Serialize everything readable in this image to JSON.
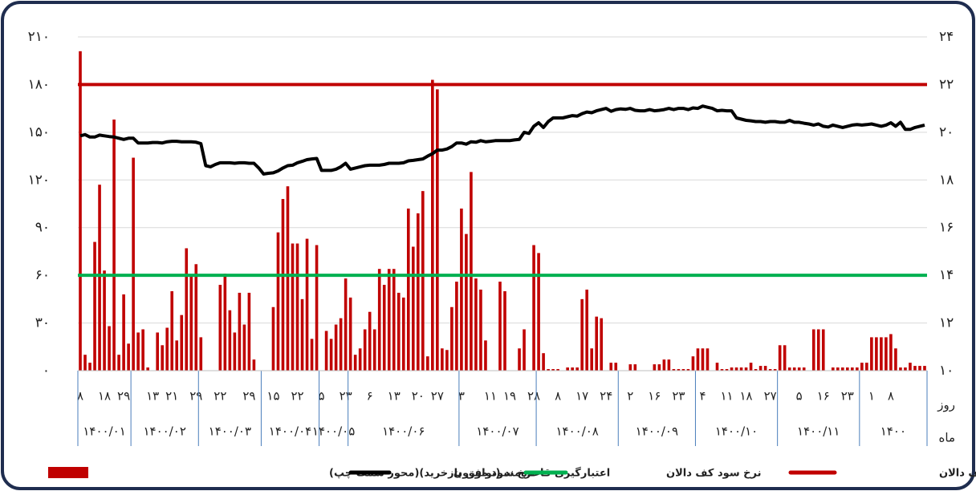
{
  "chart_data": {
    "type": "bar",
    "ylim": [
      0,
      210
    ],
    "yticks": [
      {
        "value": 0,
        "label": "۰"
      },
      {
        "value": 30,
        "label": "۳۰"
      },
      {
        "value": 60,
        "label": "۶۰"
      },
      {
        "value": 90,
        "label": "۹۰"
      },
      {
        "value": 120,
        "label": "۱۲۰"
      },
      {
        "value": 150,
        "label": "۱۵۰"
      },
      {
        "value": 180,
        "label": "۱۸۰"
      },
      {
        "value": 210,
        "label": "۲۱۰"
      }
    ],
    "y2lim": [
      10,
      24
    ],
    "y2ticks": [
      {
        "value": 10,
        "label": "۱۰"
      },
      {
        "value": 12,
        "label": "۱۲"
      },
      {
        "value": 14,
        "label": "۱۴"
      },
      {
        "value": 16,
        "label": "۱۶"
      },
      {
        "value": 18,
        "label": "۱۸"
      },
      {
        "value": 20,
        "label": "۲۰"
      },
      {
        "value": 22,
        "label": "۲۲"
      },
      {
        "value": 24,
        "label": "۲۴"
      }
    ],
    "grid": true,
    "legend": "bottom",
    "x_label_day": "روز",
    "x_label_month": "ماه",
    "categories": [
      "۸",
      null,
      null,
      null,
      null,
      "۱۸",
      null,
      null,
      null,
      "۲۹",
      null,
      null,
      null,
      null,
      null,
      "۱۳",
      null,
      null,
      null,
      "۲۱",
      null,
      null,
      null,
      null,
      "۲۹",
      null,
      null,
      null,
      null,
      "۲۲",
      null,
      null,
      null,
      null,
      null,
      "۲۹",
      null,
      null,
      null,
      null,
      "۱۵",
      null,
      null,
      null,
      null,
      "۲۲",
      null,
      null,
      null,
      null,
      "۵",
      null,
      null,
      null,
      null,
      "۲۳",
      null,
      null,
      null,
      null,
      "۶",
      null,
      null,
      null,
      null,
      "۱۳",
      null,
      null,
      null,
      null,
      "۲۰",
      null,
      null,
      null,
      "۲۷",
      null,
      null,
      null,
      null,
      "۳",
      null,
      null,
      null,
      null,
      null,
      "۱۱",
      null,
      null,
      null,
      "۱۹",
      null,
      null,
      null,
      null,
      "۲۸",
      null,
      null,
      null,
      null,
      "۸",
      null,
      null,
      null,
      null,
      "۱۷",
      null,
      null,
      null,
      null,
      "۲۴",
      null,
      null,
      null,
      null,
      "۲",
      null,
      null,
      null,
      null,
      "۱۶",
      null,
      null,
      null,
      null,
      "۲۳",
      null,
      null,
      null,
      null,
      "۴",
      null,
      null,
      null,
      null,
      "۱۱",
      null,
      null,
      null,
      "۱۸",
      null,
      null,
      null,
      null,
      "۲۷",
      null,
      null,
      null,
      null,
      null,
      "۵",
      null,
      null,
      null,
      null,
      "۱۶",
      null,
      null,
      null,
      null,
      "۲۳",
      null,
      null,
      null,
      null,
      "۱",
      null,
      null,
      null,
      "۸",
      null,
      null,
      null,
      null,
      null,
      null,
      null
    ],
    "months": [
      {
        "label": "۱۴۰۰/۰۱",
        "span": 11
      },
      {
        "label": "۱۴۰۰/۰۲",
        "span": 14
      },
      {
        "label": "۱۴۰۰/۰۳",
        "span": 13
      },
      {
        "label": "۱۴۰۰/۰۴",
        "span": 12
      },
      {
        "label": "۱۴۰۰/۰۵",
        "span": 6
      },
      {
        "label": "۱۴۰۰/۰۶",
        "span": 23
      },
      {
        "label": "۱۴۰۰/۰۷",
        "span": 16
      },
      {
        "label": "۱۴۰۰/۰۸",
        "span": 17
      },
      {
        "label": "۱۴۰۰/۰۹",
        "span": 16
      },
      {
        "label": "۱۴۰۰/۱۰",
        "span": 17
      },
      {
        "label": "۱۴۰۰/۱۱",
        "span": 17
      },
      {
        "label": "۱۴۰۰",
        "span": 14
      }
    ],
    "series": [
      {
        "name": "نرخ سود سقف دالان",
        "type": "hline",
        "axis": "y2",
        "color": "#c00000",
        "value": 22
      },
      {
        "name": "نرخ سود کف دالان",
        "type": "hline",
        "axis": "y2",
        "color": "#00b050",
        "value": 14
      },
      {
        "name": "نرخ سود  موزون",
        "type": "line",
        "axis": "y2",
        "color": "#000000",
        "values": [
          19.85,
          19.9,
          19.8,
          19.8,
          19.88,
          19.85,
          19.82,
          19.8,
          19.75,
          19.7,
          19.75,
          19.75,
          19.55,
          19.55,
          19.55,
          19.57,
          19.57,
          19.55,
          19.6,
          19.62,
          19.62,
          19.6,
          19.6,
          19.6,
          19.58,
          19.52,
          18.6,
          18.55,
          18.65,
          18.72,
          18.72,
          18.72,
          18.7,
          18.72,
          18.72,
          18.7,
          18.7,
          18.5,
          18.25,
          18.28,
          18.3,
          18.38,
          18.5,
          18.6,
          18.62,
          18.72,
          18.78,
          18.85,
          18.88,
          18.9,
          18.4,
          18.4,
          18.4,
          18.45,
          18.55,
          18.7,
          18.45,
          18.5,
          18.55,
          18.6,
          18.62,
          18.62,
          18.62,
          18.65,
          18.7,
          18.7,
          18.7,
          18.72,
          18.8,
          18.82,
          18.85,
          18.88,
          19.0,
          19.1,
          19.25,
          19.25,
          19.3,
          19.4,
          19.55,
          19.55,
          19.5,
          19.6,
          19.58,
          19.65,
          19.6,
          19.62,
          19.65,
          19.65,
          19.65,
          19.65,
          19.68,
          19.7,
          20.0,
          19.95,
          20.25,
          20.4,
          20.2,
          20.45,
          20.6,
          20.6,
          20.6,
          20.65,
          20.7,
          20.68,
          20.78,
          20.85,
          20.82,
          20.9,
          20.95,
          21.0,
          20.88,
          20.95,
          20.98,
          20.96,
          21.0,
          20.92,
          20.9,
          20.9,
          20.95,
          20.9,
          20.92,
          20.95,
          21.0,
          20.95,
          21.0,
          21.0,
          20.95,
          21.02,
          21.0,
          21.1,
          21.05,
          21.0,
          20.9,
          20.92,
          20.9,
          20.9,
          20.6,
          20.55,
          20.5,
          20.48,
          20.45,
          20.45,
          20.42,
          20.45,
          20.45,
          20.42,
          20.42,
          20.5,
          20.42,
          20.42,
          20.38,
          20.35,
          20.3,
          20.35,
          20.25,
          20.22,
          20.3,
          20.25,
          20.2,
          20.25,
          20.3,
          20.32,
          20.3,
          20.32,
          20.35,
          20.3,
          20.25,
          20.3,
          20.4,
          20.25,
          20.42,
          20.12,
          20.12,
          20.2,
          20.25,
          20.3
        ]
      },
      {
        "name": "اعتبارگیری قاعده‌مند (توافق بازخرید)(محور سمت چپ)",
        "type": "bar",
        "axis": "y",
        "color": "#c00000",
        "values": [
          201,
          10,
          5,
          81,
          117,
          63,
          28,
          158,
          10,
          48,
          17,
          134,
          24,
          26,
          2,
          0,
          24,
          16,
          27,
          50,
          19,
          35,
          77,
          60,
          67,
          21,
          0,
          0,
          0,
          54,
          61,
          38,
          24,
          49,
          29,
          49,
          7,
          0,
          0,
          0,
          40,
          87,
          108,
          116,
          80,
          80,
          45,
          83,
          20,
          79,
          0,
          25,
          20,
          29,
          33,
          58,
          46,
          10,
          14,
          26,
          37,
          26,
          64,
          54,
          64,
          64,
          49,
          46,
          102,
          78,
          99,
          113,
          9,
          183,
          177,
          14,
          13,
          40,
          56,
          102,
          86,
          125,
          58,
          51,
          19,
          0,
          0,
          56,
          50,
          0,
          0,
          14,
          26,
          0,
          79,
          74,
          11,
          1,
          1,
          1,
          0,
          2,
          2,
          2,
          45,
          51,
          14,
          34,
          33,
          0,
          5,
          5,
          0,
          0,
          4,
          4,
          0,
          0,
          0,
          4,
          4,
          7,
          7,
          1,
          1,
          1,
          1,
          9,
          14,
          14,
          14,
          0,
          5,
          1,
          1,
          2,
          2,
          2,
          2,
          5,
          1,
          3,
          3,
          1,
          1,
          16,
          16,
          2,
          2,
          2,
          2,
          0,
          26,
          26,
          26,
          0,
          2,
          2,
          2,
          2,
          2,
          2,
          5,
          5,
          21,
          21,
          21,
          21,
          23,
          14,
          2,
          2,
          5,
          3,
          3,
          3
        ]
      }
    ]
  }
}
